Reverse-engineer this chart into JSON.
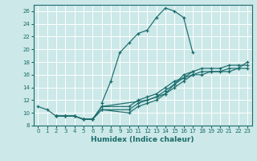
{
  "xlabel": "Humidex (Indice chaleur)",
  "bg_color": "#cce8e8",
  "grid_color": "#ffffff",
  "line_color": "#1a6b6b",
  "xlim": [
    -0.5,
    23.5
  ],
  "ylim": [
    8,
    27
  ],
  "xticks": [
    0,
    1,
    2,
    3,
    4,
    5,
    6,
    7,
    8,
    9,
    10,
    11,
    12,
    13,
    14,
    15,
    16,
    17,
    18,
    19,
    20,
    21,
    22,
    23
  ],
  "yticks": [
    8,
    10,
    12,
    14,
    16,
    18,
    20,
    22,
    24,
    26
  ],
  "series": [
    {
      "x": [
        0,
        1,
        2,
        3,
        4,
        5,
        6,
        7,
        12,
        13,
        14,
        15,
        16,
        17
      ],
      "y": [
        11,
        10.5,
        9.5,
        9.5,
        9.5,
        9,
        9,
        11,
        12,
        12.5,
        13,
        14.5,
        16,
        16.5
      ]
    },
    {
      "x": [
        7,
        8,
        9,
        10,
        11,
        12,
        13,
        14,
        15,
        16,
        17
      ],
      "y": [
        11.5,
        15,
        19.5,
        21,
        22.5,
        23,
        25,
        26.5,
        26,
        25,
        19.5
      ]
    },
    {
      "x": [
        2,
        3,
        4,
        5,
        6,
        7,
        10,
        11,
        12,
        13,
        14,
        15,
        16,
        17,
        18,
        19,
        20,
        21,
        22,
        23
      ],
      "y": [
        9.5,
        9.5,
        9.5,
        9,
        9,
        10.5,
        10,
        11,
        11.5,
        12,
        13,
        14,
        15,
        16,
        16,
        16.5,
        16.5,
        16.5,
        17,
        18
      ]
    },
    {
      "x": [
        2,
        3,
        4,
        5,
        6,
        7,
        10,
        11,
        12,
        13,
        14,
        15,
        16,
        17,
        18,
        19,
        20,
        21,
        22,
        23
      ],
      "y": [
        9.5,
        9.5,
        9.5,
        9,
        9,
        10.5,
        10.5,
        11.5,
        12,
        12.5,
        13.5,
        14.5,
        15.5,
        16,
        16.5,
        16.5,
        16.5,
        17,
        17,
        17
      ]
    },
    {
      "x": [
        2,
        3,
        4,
        5,
        6,
        7,
        10,
        11,
        12,
        13,
        14,
        15,
        16,
        17,
        18,
        19,
        20,
        21,
        22,
        23
      ],
      "y": [
        9.5,
        9.5,
        9.5,
        9,
        9,
        11,
        11,
        12,
        12.5,
        13,
        14,
        15,
        15.5,
        16.5,
        17,
        17,
        17,
        17.5,
        17.5,
        17.5
      ]
    }
  ]
}
